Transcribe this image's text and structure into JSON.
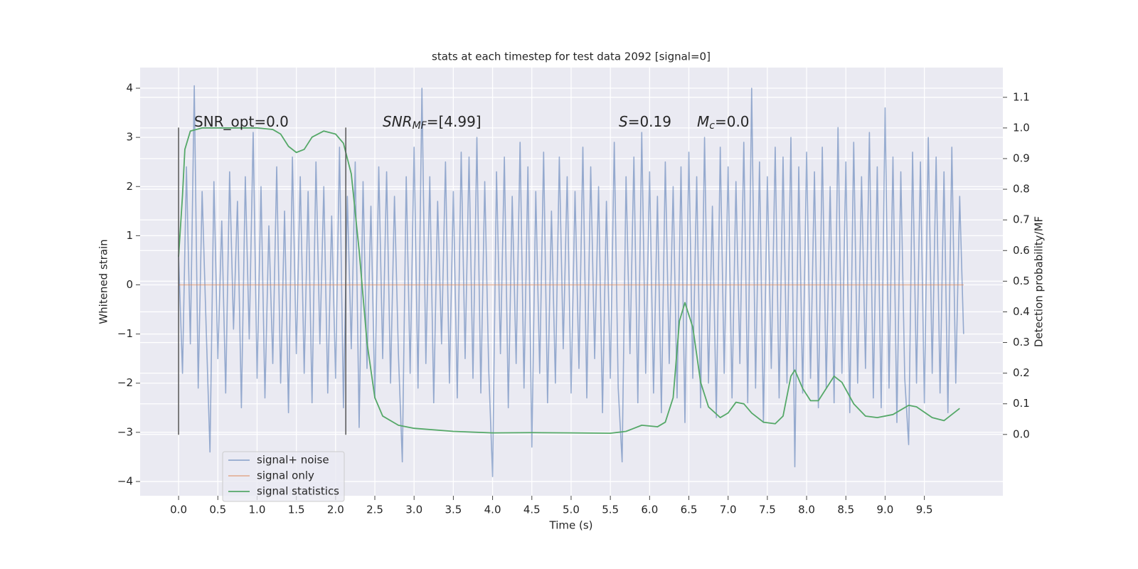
{
  "chart_data": {
    "type": "line",
    "title": "stats at each timestep for test data 2092 [signal=0]",
    "xlabel": "Time (s)",
    "ylabel": "Whitened strain",
    "y2label": "Detection probability/MF",
    "xlim": [
      -0.49,
      10.5
    ],
    "ylim": [
      -4.29,
      4.42
    ],
    "y2lim": [
      -0.2,
      1.197
    ],
    "xticks": [
      {
        "value": 0,
        "label": "0.0"
      },
      {
        "value": 0.5,
        "label": "0.5"
      },
      {
        "value": 1,
        "label": "1.0"
      },
      {
        "value": 1.5,
        "label": "1.5"
      },
      {
        "value": 2,
        "label": "2.0"
      },
      {
        "value": 2.5,
        "label": "2.5"
      },
      {
        "value": 3,
        "label": "3.0"
      },
      {
        "value": 3.5,
        "label": "3.5"
      },
      {
        "value": 4,
        "label": "4.0"
      },
      {
        "value": 4.5,
        "label": "4.5"
      },
      {
        "value": 5,
        "label": "5.0"
      },
      {
        "value": 5.5,
        "label": "5.5"
      },
      {
        "value": 6,
        "label": "6.0"
      },
      {
        "value": 6.5,
        "label": "6.5"
      },
      {
        "value": 7,
        "label": "7.0"
      },
      {
        "value": 7.5,
        "label": "7.5"
      },
      {
        "value": 8,
        "label": "8.0"
      },
      {
        "value": 8.5,
        "label": "8.5"
      },
      {
        "value": 9,
        "label": "9.0"
      },
      {
        "value": 9.5,
        "label": "9.5"
      }
    ],
    "yticks": [
      {
        "value": -4,
        "label": "−4"
      },
      {
        "value": -3,
        "label": "−3"
      },
      {
        "value": -2,
        "label": "−2"
      },
      {
        "value": -1,
        "label": "−1"
      },
      0,
      1,
      2,
      3,
      4
    ],
    "y2ticks": [
      {
        "value": 0,
        "label": "0.0"
      },
      {
        "value": 0.1,
        "label": "0.1"
      },
      {
        "value": 0.2,
        "label": "0.2"
      },
      {
        "value": 0.3,
        "label": "0.3"
      },
      {
        "value": 0.4,
        "label": "0.4"
      },
      {
        "value": 0.5,
        "label": "0.5"
      },
      {
        "value": 0.6,
        "label": "0.6"
      },
      {
        "value": 0.7,
        "label": "0.7"
      },
      {
        "value": 0.8,
        "label": "0.8"
      },
      {
        "value": 0.9,
        "label": "0.9"
      },
      {
        "value": 1,
        "label": "1.0"
      },
      {
        "value": 1.1,
        "label": "1.1"
      }
    ],
    "grid": true,
    "legend": "lower left",
    "vlines": {
      "x": [
        0,
        2.13
      ],
      "ymin": -3.05,
      "ymax": 3.2,
      "color": "#555555"
    },
    "annotations": [
      {
        "main": "SNR_opt=0.0"
      },
      {
        "main": "SNR",
        "sub": "MF",
        "suffix": "=[4.99]"
      },
      {
        "main": "S",
        "suffix": "=0.19"
      },
      {
        "main": "M",
        "sub": "c",
        "suffix": "=0.0"
      }
    ],
    "series": [
      {
        "name": "signal+ noise",
        "color": "#4c72b0",
        "x": [
          0,
          0.05,
          0.1,
          0.15,
          0.2,
          0.25,
          0.3,
          0.35,
          0.4,
          0.45,
          0.5,
          0.55,
          0.6,
          0.65,
          0.7,
          0.75,
          0.8,
          0.85,
          0.9,
          0.95,
          1,
          1.05,
          1.1,
          1.15,
          1.2,
          1.25,
          1.3,
          1.35,
          1.4,
          1.45,
          1.5,
          1.55,
          1.6,
          1.65,
          1.7,
          1.75,
          1.8,
          1.85,
          1.9,
          1.95,
          2,
          2.05,
          2.1,
          2.15,
          2.2,
          2.25,
          2.3,
          2.35,
          2.4,
          2.45,
          2.5,
          2.55,
          2.6,
          2.65,
          2.7,
          2.75,
          2.8,
          2.85,
          2.9,
          2.95,
          3,
          3.05,
          3.1,
          3.15,
          3.2,
          3.25,
          3.3,
          3.35,
          3.4,
          3.45,
          3.5,
          3.55,
          3.6,
          3.65,
          3.7,
          3.75,
          3.8,
          3.85,
          3.9,
          3.95,
          4,
          4.05,
          4.1,
          4.15,
          4.2,
          4.25,
          4.3,
          4.35,
          4.4,
          4.45,
          4.5,
          4.55,
          4.6,
          4.65,
          4.7,
          4.75,
          4.8,
          4.85,
          4.9,
          4.95,
          5,
          5.05,
          5.1,
          5.15,
          5.2,
          5.25,
          5.3,
          5.35,
          5.4,
          5.45,
          5.5,
          5.55,
          5.6,
          5.65,
          5.7,
          5.75,
          5.8,
          5.85,
          5.9,
          5.95,
          6,
          6.05,
          6.1,
          6.15,
          6.2,
          6.25,
          6.3,
          6.35,
          6.4,
          6.45,
          6.5,
          6.55,
          6.6,
          6.65,
          6.7,
          6.75,
          6.8,
          6.85,
          6.9,
          6.95,
          7,
          7.05,
          7.1,
          7.15,
          7.2,
          7.25,
          7.3,
          7.35,
          7.4,
          7.45,
          7.5,
          7.55,
          7.6,
          7.65,
          7.7,
          7.75,
          7.8,
          7.85,
          7.9,
          7.95,
          8,
          8.05,
          8.1,
          8.15,
          8.2,
          8.25,
          8.3,
          8.35,
          8.4,
          8.45,
          8.5,
          8.55,
          8.6,
          8.65,
          8.7,
          8.75,
          8.8,
          8.85,
          8.9,
          8.95,
          9,
          9.05,
          9.1,
          9.15,
          9.2,
          9.25,
          9.3,
          9.35,
          9.4,
          9.45,
          9.5,
          9.55,
          9.6,
          9.65,
          9.7,
          9.75,
          9.8,
          9.85,
          9.9,
          9.95,
          10
        ],
        "values": [
          0.6,
          -1.8,
          2.4,
          -1.2,
          4.05,
          -2.1,
          1.9,
          -0.8,
          -3.4,
          2.1,
          -1.5,
          1.3,
          -2.2,
          2.3,
          -0.9,
          1.7,
          -2.5,
          2.2,
          -1.1,
          3.1,
          -1.9,
          2.0,
          -2.3,
          1.2,
          -1.6,
          2.4,
          -2.0,
          1.5,
          -2.6,
          2.6,
          -1.4,
          2.2,
          -1.8,
          1.9,
          -2.4,
          2.5,
          -1.2,
          2.0,
          -2.2,
          1.4,
          -1.9,
          2.8,
          -2.5,
          1.8,
          -1.3,
          2.5,
          -2.9,
          2.1,
          -1.7,
          1.6,
          -2.3,
          2.4,
          -1.5,
          2.3,
          -2.0,
          1.8,
          -1.4,
          -3.6,
          2.2,
          -1.8,
          2.8,
          -2.1,
          4.0,
          -1.6,
          2.2,
          -2.4,
          1.7,
          -1.2,
          2.5,
          -2.0,
          1.9,
          -2.3,
          2.7,
          -1.5,
          2.6,
          -1.9,
          3.0,
          -2.2,
          2.1,
          -1.7,
          -3.9,
          2.3,
          -1.4,
          2.6,
          -2.5,
          1.8,
          -1.6,
          2.9,
          -2.1,
          2.4,
          -3.3,
          1.9,
          -1.8,
          2.7,
          -2.4,
          1.5,
          -2.0,
          2.6,
          -1.3,
          2.2,
          -2.2,
          1.9,
          -1.7,
          2.8,
          -2.3,
          2.4,
          -1.5,
          2.0,
          -2.6,
          1.7,
          -1.9,
          2.9,
          -2.1,
          -3.6,
          2.2,
          -1.4,
          2.6,
          -2.4,
          3.1,
          -1.8,
          2.3,
          -2.2,
          1.8,
          -2.6,
          2.5,
          -1.6,
          2.0,
          -2.3,
          2.4,
          -2.8,
          2.7,
          -1.9,
          2.2,
          -2.5,
          3.0,
          -2.0,
          1.6,
          -2.7,
          2.8,
          -1.8,
          2.4,
          -2.3,
          2.1,
          -1.6,
          2.9,
          -2.4,
          4.0,
          -2.1,
          2.5,
          -2.8,
          2.2,
          -1.7,
          2.8,
          -2.3,
          2.6,
          -2.0,
          3.0,
          -3.7,
          2.4,
          -2.2,
          2.7,
          -1.9,
          2.3,
          -2.5,
          2.8,
          -2.1,
          2.0,
          -2.4,
          3.2,
          -1.8,
          2.5,
          -2.6,
          2.9,
          -2.0,
          2.2,
          -1.7,
          3.1,
          -2.3,
          2.4,
          -2.5,
          3.6,
          -2.1,
          2.6,
          -2.8,
          2.3,
          -1.9,
          -3.25,
          2.7,
          -2.0,
          2.5,
          -2.4,
          3.0,
          -1.8,
          2.6,
          -2.2,
          2.3,
          -2.6,
          2.8,
          -2.0,
          1.8,
          -1.0
        ]
      },
      {
        "name": "signal only",
        "color": "#dd8452",
        "x": [
          0,
          10
        ],
        "values": [
          0,
          0
        ]
      },
      {
        "name": "signal statistics",
        "color": "#55a868",
        "axis": "y2",
        "x": [
          0,
          0.05,
          0.08,
          0.15,
          0.3,
          1.0,
          1.2,
          1.3,
          1.4,
          1.5,
          1.6,
          1.7,
          1.85,
          2.0,
          2.1,
          2.2,
          2.3,
          2.4,
          2.5,
          2.6,
          2.8,
          3.0,
          3.5,
          4.0,
          4.5,
          5.0,
          5.5,
          5.7,
          5.9,
          6.1,
          6.2,
          6.3,
          6.38,
          6.45,
          6.55,
          6.65,
          6.75,
          6.9,
          7.0,
          7.1,
          7.2,
          7.3,
          7.45,
          7.6,
          7.7,
          7.8,
          7.85,
          7.95,
          8.05,
          8.15,
          8.35,
          8.45,
          8.6,
          8.75,
          8.9,
          9.1,
          9.3,
          9.4,
          9.6,
          9.75,
          9.95
        ],
        "values": [
          0.58,
          0.78,
          0.93,
          0.99,
          1.0,
          1.0,
          0.995,
          0.98,
          0.94,
          0.92,
          0.93,
          0.97,
          0.99,
          0.98,
          0.95,
          0.85,
          0.6,
          0.3,
          0.12,
          0.06,
          0.03,
          0.02,
          0.01,
          0.005,
          0.006,
          0.005,
          0.004,
          0.01,
          0.03,
          0.025,
          0.04,
          0.12,
          0.37,
          0.43,
          0.35,
          0.17,
          0.09,
          0.055,
          0.07,
          0.105,
          0.1,
          0.07,
          0.04,
          0.035,
          0.06,
          0.19,
          0.21,
          0.15,
          0.11,
          0.11,
          0.19,
          0.17,
          0.1,
          0.06,
          0.055,
          0.065,
          0.095,
          0.09,
          0.055,
          0.045,
          0.085
        ]
      }
    ]
  }
}
